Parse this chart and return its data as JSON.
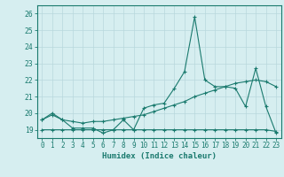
{
  "title": "",
  "xlabel": "Humidex (Indice chaleur)",
  "ylabel": "",
  "background_color": "#d6eef0",
  "grid_color": "#b8d8dc",
  "line_color": "#1a7a6e",
  "xlim": [
    -0.5,
    23.5
  ],
  "ylim": [
    18.5,
    26.5
  ],
  "yticks": [
    19,
    20,
    21,
    22,
    23,
    24,
    25,
    26
  ],
  "xticks": [
    0,
    1,
    2,
    3,
    4,
    5,
    6,
    7,
    8,
    9,
    10,
    11,
    12,
    13,
    14,
    15,
    16,
    17,
    18,
    19,
    20,
    21,
    22,
    23
  ],
  "line1_x": [
    0,
    1,
    2,
    3,
    4,
    5,
    6,
    7,
    8,
    9,
    10,
    11,
    12,
    13,
    14,
    15,
    16,
    17,
    18,
    19,
    20,
    21,
    22,
    23
  ],
  "line1_y": [
    19.6,
    20.0,
    19.6,
    19.1,
    19.1,
    19.1,
    18.8,
    19.0,
    19.6,
    19.0,
    20.3,
    20.5,
    20.6,
    21.5,
    22.5,
    25.8,
    22.0,
    21.6,
    21.6,
    21.5,
    20.4,
    22.7,
    20.4,
    18.8
  ],
  "line2_x": [
    0,
    1,
    2,
    3,
    4,
    5,
    6,
    7,
    8,
    9,
    10,
    11,
    12,
    13,
    14,
    15,
    16,
    17,
    18,
    19,
    20,
    21,
    22,
    23
  ],
  "line2_y": [
    19.6,
    19.9,
    19.6,
    19.5,
    19.4,
    19.5,
    19.5,
    19.6,
    19.7,
    19.8,
    19.9,
    20.1,
    20.3,
    20.5,
    20.7,
    21.0,
    21.2,
    21.4,
    21.6,
    21.8,
    21.9,
    22.0,
    21.9,
    21.6
  ],
  "line3_x": [
    0,
    1,
    2,
    3,
    4,
    5,
    6,
    7,
    8,
    9,
    10,
    11,
    12,
    13,
    14,
    15,
    16,
    17,
    18,
    19,
    20,
    21,
    22,
    23
  ],
  "line3_y": [
    19.0,
    19.0,
    19.0,
    19.0,
    19.0,
    19.0,
    19.0,
    19.0,
    19.0,
    19.0,
    19.0,
    19.0,
    19.0,
    19.0,
    19.0,
    19.0,
    19.0,
    19.0,
    19.0,
    19.0,
    19.0,
    19.0,
    19.0,
    18.9
  ],
  "xlabel_fontsize": 6.5,
  "tick_fontsize": 5.5
}
